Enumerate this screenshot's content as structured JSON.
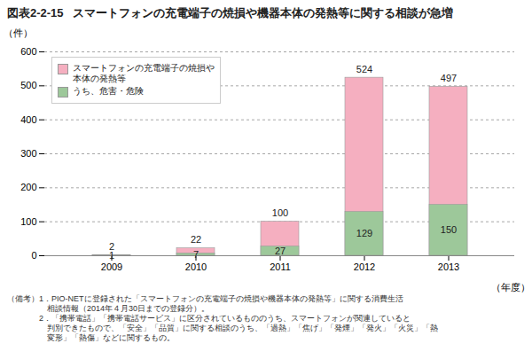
{
  "chart_data": {
    "type": "bar",
    "figure_label": "図表2-2-15",
    "title": "スマートフォンの充電端子の焼損や機器本体の発熱等に関する相談が急増",
    "ylabel": "（件）",
    "xlabel": "（年度）",
    "categories": [
      "2009",
      "2010",
      "2011",
      "2012",
      "2013"
    ],
    "series": [
      {
        "name": "スマートフォンの充電端子の焼損や\n本体の発熱等",
        "color": "#f5afc0",
        "values": [
          2,
          22,
          100,
          524,
          497
        ]
      },
      {
        "name": "うち、危害・危険",
        "color": "#9dc89a",
        "values": [
          1,
          7,
          27,
          129,
          150
        ]
      }
    ],
    "stacked": false,
    "data_labels": true,
    "ylim": [
      0,
      600
    ],
    "yticks": [
      0,
      100,
      200,
      300,
      400,
      500,
      600
    ],
    "grid": true,
    "legend": "upper left",
    "notes": [
      "（備考）1．PIO-NETに登録された「スマートフォンの充電端子の焼損や機器本体の発熱等」に関する消費生活",
      "　　　　　相談情報（2014年４月30日までの登録分）。",
      "　　　　2．「携帯電話」「携帯電話サービス」に区分されているもののうち、スマートフォンが関連していると",
      "　　　　　判別できたもので、「安全」「品質」に関する相談のうち、「過熱」「焦げ」「発煙」「発火」「火災」「熱",
      "　　　　　変形」「熱傷」などに関するもの。"
    ]
  }
}
